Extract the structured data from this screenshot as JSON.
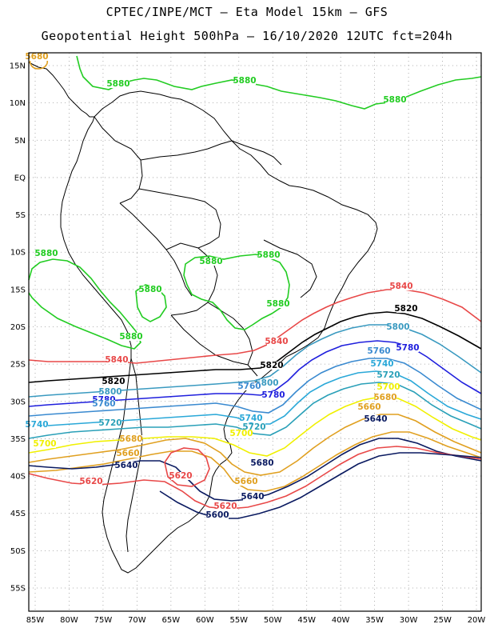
{
  "title": {
    "line1": "CPTEC/INPE/MCT –  Eta Model 15km – GFS",
    "line2": "Geopotential Height 500hPa – 16/10/2020 12UTC fct=204h"
  },
  "axes": {
    "lat_labels": [
      "15N",
      "10N",
      "5N",
      "EQ",
      "5S",
      "10S",
      "15S",
      "20S",
      "25S",
      "30S",
      "35S",
      "40S",
      "45S",
      "50S",
      "55S"
    ],
    "lon_labels": [
      "85W",
      "80W",
      "75W",
      "70W",
      "65W",
      "60W",
      "55W",
      "50W",
      "45W",
      "40W",
      "35W",
      "30W",
      "25W",
      "20W"
    ]
  },
  "colors": {
    "c5880": "#22cc22",
    "c5840": "#e84848",
    "c5820": "#000000",
    "c5800": "#3a9ac0",
    "c5780": "#1f1fdd",
    "c5760": "#3a8ad0",
    "c5740": "#2aa8d8",
    "c5720": "#2aa0b8",
    "c5700": "#f0f000",
    "c5680": "#e0a020",
    "c5660": "#e0a020",
    "c5640": "#0a1a60",
    "c5620": "#e84848",
    "c5600": "#0a1a60"
  },
  "labels": [
    {
      "text": "5880"
    },
    {
      "text": "5880"
    },
    {
      "text": "5880"
    },
    {
      "text": "5880"
    },
    {
      "text": "5880"
    },
    {
      "text": "5880"
    },
    {
      "text": "5880"
    },
    {
      "text": "5880"
    },
    {
      "text": "5880"
    },
    {
      "text": "5840"
    },
    {
      "text": "5840"
    },
    {
      "text": "5840"
    },
    {
      "text": "5820"
    },
    {
      "text": "5820"
    },
    {
      "text": "5820"
    },
    {
      "text": "5800"
    },
    {
      "text": "5800"
    },
    {
      "text": "5800"
    },
    {
      "text": "5780"
    },
    {
      "text": "5780"
    },
    {
      "text": "5780"
    },
    {
      "text": "5760"
    },
    {
      "text": "5760"
    },
    {
      "text": "5760"
    },
    {
      "text": "5740"
    },
    {
      "text": "5740"
    },
    {
      "text": "5740"
    },
    {
      "text": "5720"
    },
    {
      "text": "5720"
    },
    {
      "text": "5720"
    },
    {
      "text": "5700"
    },
    {
      "text": "5700"
    },
    {
      "text": "5700"
    },
    {
      "text": "5680"
    },
    {
      "text": "5680"
    },
    {
      "text": "5680"
    },
    {
      "text": "5660"
    },
    {
      "text": "5660"
    },
    {
      "text": "5660"
    },
    {
      "text": "5640"
    },
    {
      "text": "5640"
    },
    {
      "text": "5640"
    },
    {
      "text": "5620"
    },
    {
      "text": "5620"
    },
    {
      "text": "5620"
    },
    {
      "text": "5600"
    },
    {
      "text": "5680"
    }
  ]
}
